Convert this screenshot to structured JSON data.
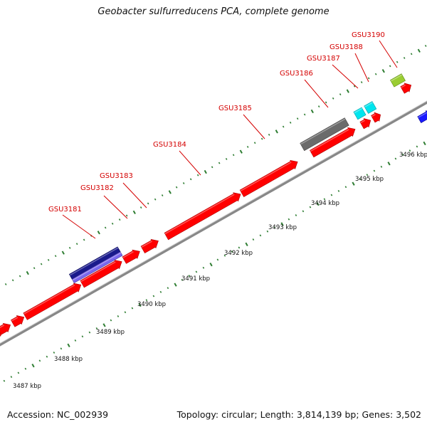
{
  "title": "Geobacter sulfurreducens PCA, complete genome",
  "footer": {
    "accession": "Accession: NC_002939",
    "summary": "Topology: circular; Length: 3,814,139 bp; Genes: 3,502"
  },
  "colors": {
    "gene_red": "#ff0000",
    "backbone": "#999999",
    "tick_green": "#2e7d32",
    "label_red": "#d40000",
    "navy": "#1a1a8c",
    "lavender": "#7b68ee",
    "gray": "#6b6b6b",
    "cyan": "#00e5ee",
    "lime": "#9acd32",
    "blue": "#1a1aff"
  },
  "kbp_labels": [
    "3487 kbp",
    "3488 kbp",
    "3489 kbp",
    "3490 kbp",
    "3491 kbp",
    "3492 kbp",
    "3493 kbp",
    "3494 kbp",
    "3495 kbp",
    "3496 kbp"
  ],
  "gene_labels": [
    "GSU3181",
    "GSU3182",
    "GSU3183",
    "GSU3184",
    "GSU3185",
    "GSU3186",
    "GSU3187",
    "GSU3188",
    "GSU3190"
  ]
}
